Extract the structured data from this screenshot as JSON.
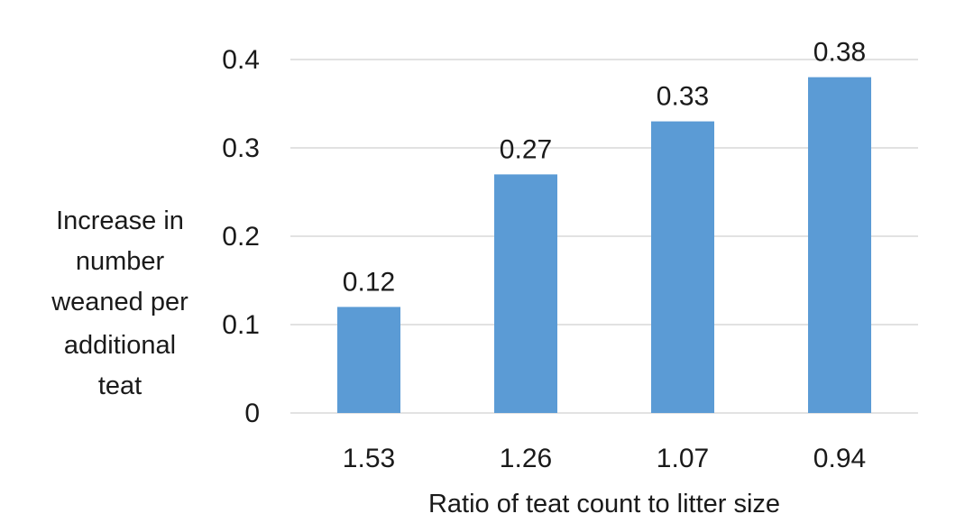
{
  "chart_data": {
    "type": "bar",
    "categories": [
      "1.53",
      "1.26",
      "1.07",
      "0.94"
    ],
    "values": [
      0.12,
      0.27,
      0.33,
      0.38
    ],
    "data_labels": [
      "0.12",
      "0.27",
      "0.33",
      "0.38"
    ],
    "xlabel": "Ratio of teat count to litter size",
    "ylabel_lines": [
      "Increase in",
      "number",
      "weaned per",
      "additional",
      "teat"
    ],
    "ylim": [
      0,
      0.4
    ],
    "yticks": [
      0,
      0.1,
      0.2,
      0.3,
      0.4
    ],
    "ytick_labels": [
      "0",
      "0.1",
      "0.2",
      "0.3",
      "0.4"
    ],
    "grid": true,
    "legend": "none",
    "bar_color": "#5b9bd5",
    "grid_color": "#d9d9d9"
  }
}
